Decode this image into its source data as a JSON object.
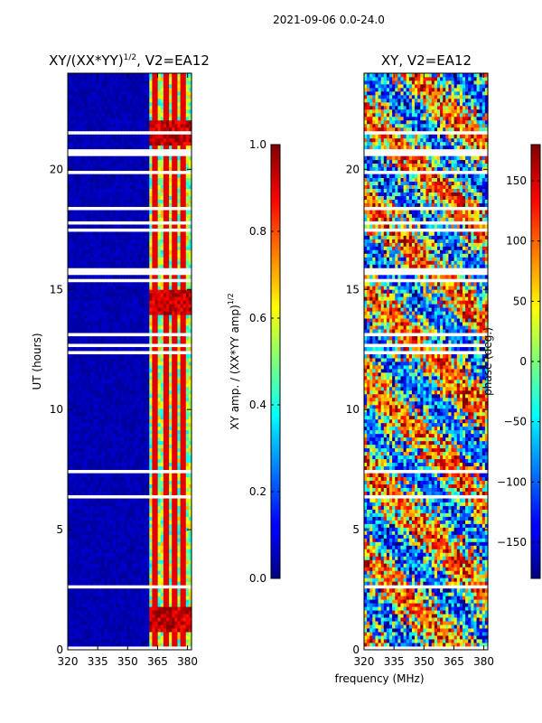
{
  "figure_title": "2021-09-06 0.0-24.0",
  "shared_xlabel": "frequency (MHz)",
  "chart_data": [
    {
      "type": "heatmap",
      "title_prefix": "XY/(XX*YY)",
      "title_sup": "1/2",
      "title_suffix": ", V2=EA12",
      "xlabel": "frequency (MHz)",
      "ylabel": "UT (hours)",
      "xlim": [
        320,
        382
      ],
      "ylim": [
        0,
        24
      ],
      "xticks": [
        320,
        335,
        350,
        365,
        380
      ],
      "yticks": [
        0,
        5,
        10,
        15,
        20
      ],
      "colorbar": {
        "label_main": "XY amp. / (XX*YY amp)",
        "label_sup": "1/2",
        "range": [
          0.0,
          1.0
        ],
        "ticks": [
          "0.0",
          "0.2",
          "0.4",
          "0.6",
          "0.8",
          "1.0"
        ],
        "tick_values": [
          0.0,
          0.2,
          0.4,
          0.6,
          0.8,
          1.0
        ],
        "colormap": "jet"
      }
    },
    {
      "type": "heatmap",
      "title": "XY, V2=EA12",
      "xlabel": "frequency (MHz)",
      "ylabel": "",
      "xlim": [
        320,
        382
      ],
      "ylim": [
        0,
        24
      ],
      "xticks": [
        320,
        335,
        350,
        365,
        380
      ],
      "yticks": [
        0,
        5,
        10,
        15,
        20
      ],
      "colorbar": {
        "label": "phase (deg.)",
        "range": [
          -180,
          180
        ],
        "ticks": [
          "−150",
          "−100",
          "−50",
          "0",
          "50",
          "100",
          "150"
        ],
        "tick_values": [
          -150,
          -100,
          -50,
          0,
          50,
          100,
          150
        ],
        "colormap": "jet"
      }
    }
  ]
}
